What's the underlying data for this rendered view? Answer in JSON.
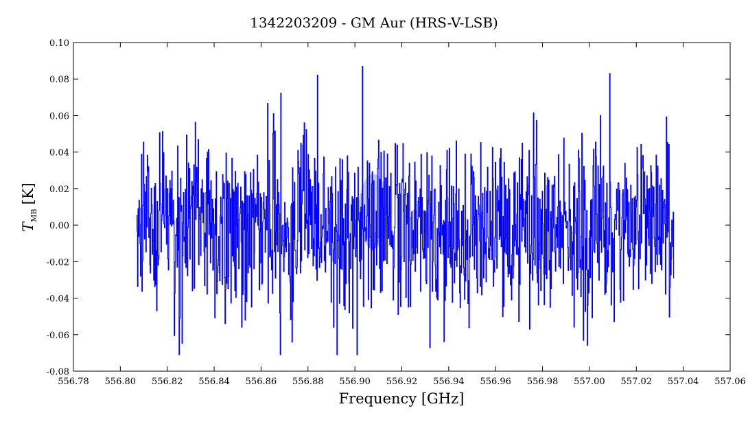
{
  "chart_data": {
    "type": "line",
    "title": "1342203209 - GM Aur (HRS-V-LSB)",
    "xlabel": "Frequency [GHz]",
    "ylabel_main": "T",
    "ylabel_sub": "MB",
    "ylabel_unit": "[K]",
    "xlim": [
      556.78,
      557.06
    ],
    "ylim": [
      -0.08,
      0.1
    ],
    "xticks": [
      556.78,
      556.8,
      556.82,
      556.84,
      556.86,
      556.88,
      556.9,
      556.92,
      556.94,
      556.96,
      556.98,
      557.0,
      557.02,
      557.04,
      557.06
    ],
    "xtick_labels": [
      "556.78",
      "556.80",
      "556.82",
      "556.84",
      "556.86",
      "556.88",
      "556.90",
      "556.92",
      "556.94",
      "556.96",
      "556.98",
      "557.00",
      "557.02",
      "557.04",
      "557.06"
    ],
    "yticks": [
      -0.08,
      -0.06,
      -0.04,
      -0.02,
      0.0,
      0.02,
      0.04,
      0.06,
      0.08,
      0.1
    ],
    "ytick_labels": [
      "-0.08",
      "-0.06",
      "-0.04",
      "-0.02",
      "0.00",
      "0.02",
      "0.04",
      "0.06",
      "0.08",
      "0.10"
    ],
    "grid": false,
    "series": [
      {
        "color": "#0000ff",
        "x_start": 556.807,
        "x_end": 557.036,
        "points": 1100,
        "noise_rms": 0.024,
        "max": 0.087,
        "min": -0.071
      }
    ],
    "highlight": {
      "color": "#7f8fd0",
      "x_center": 556.908,
      "y_range": [
        -0.01,
        0.025
      ]
    }
  }
}
